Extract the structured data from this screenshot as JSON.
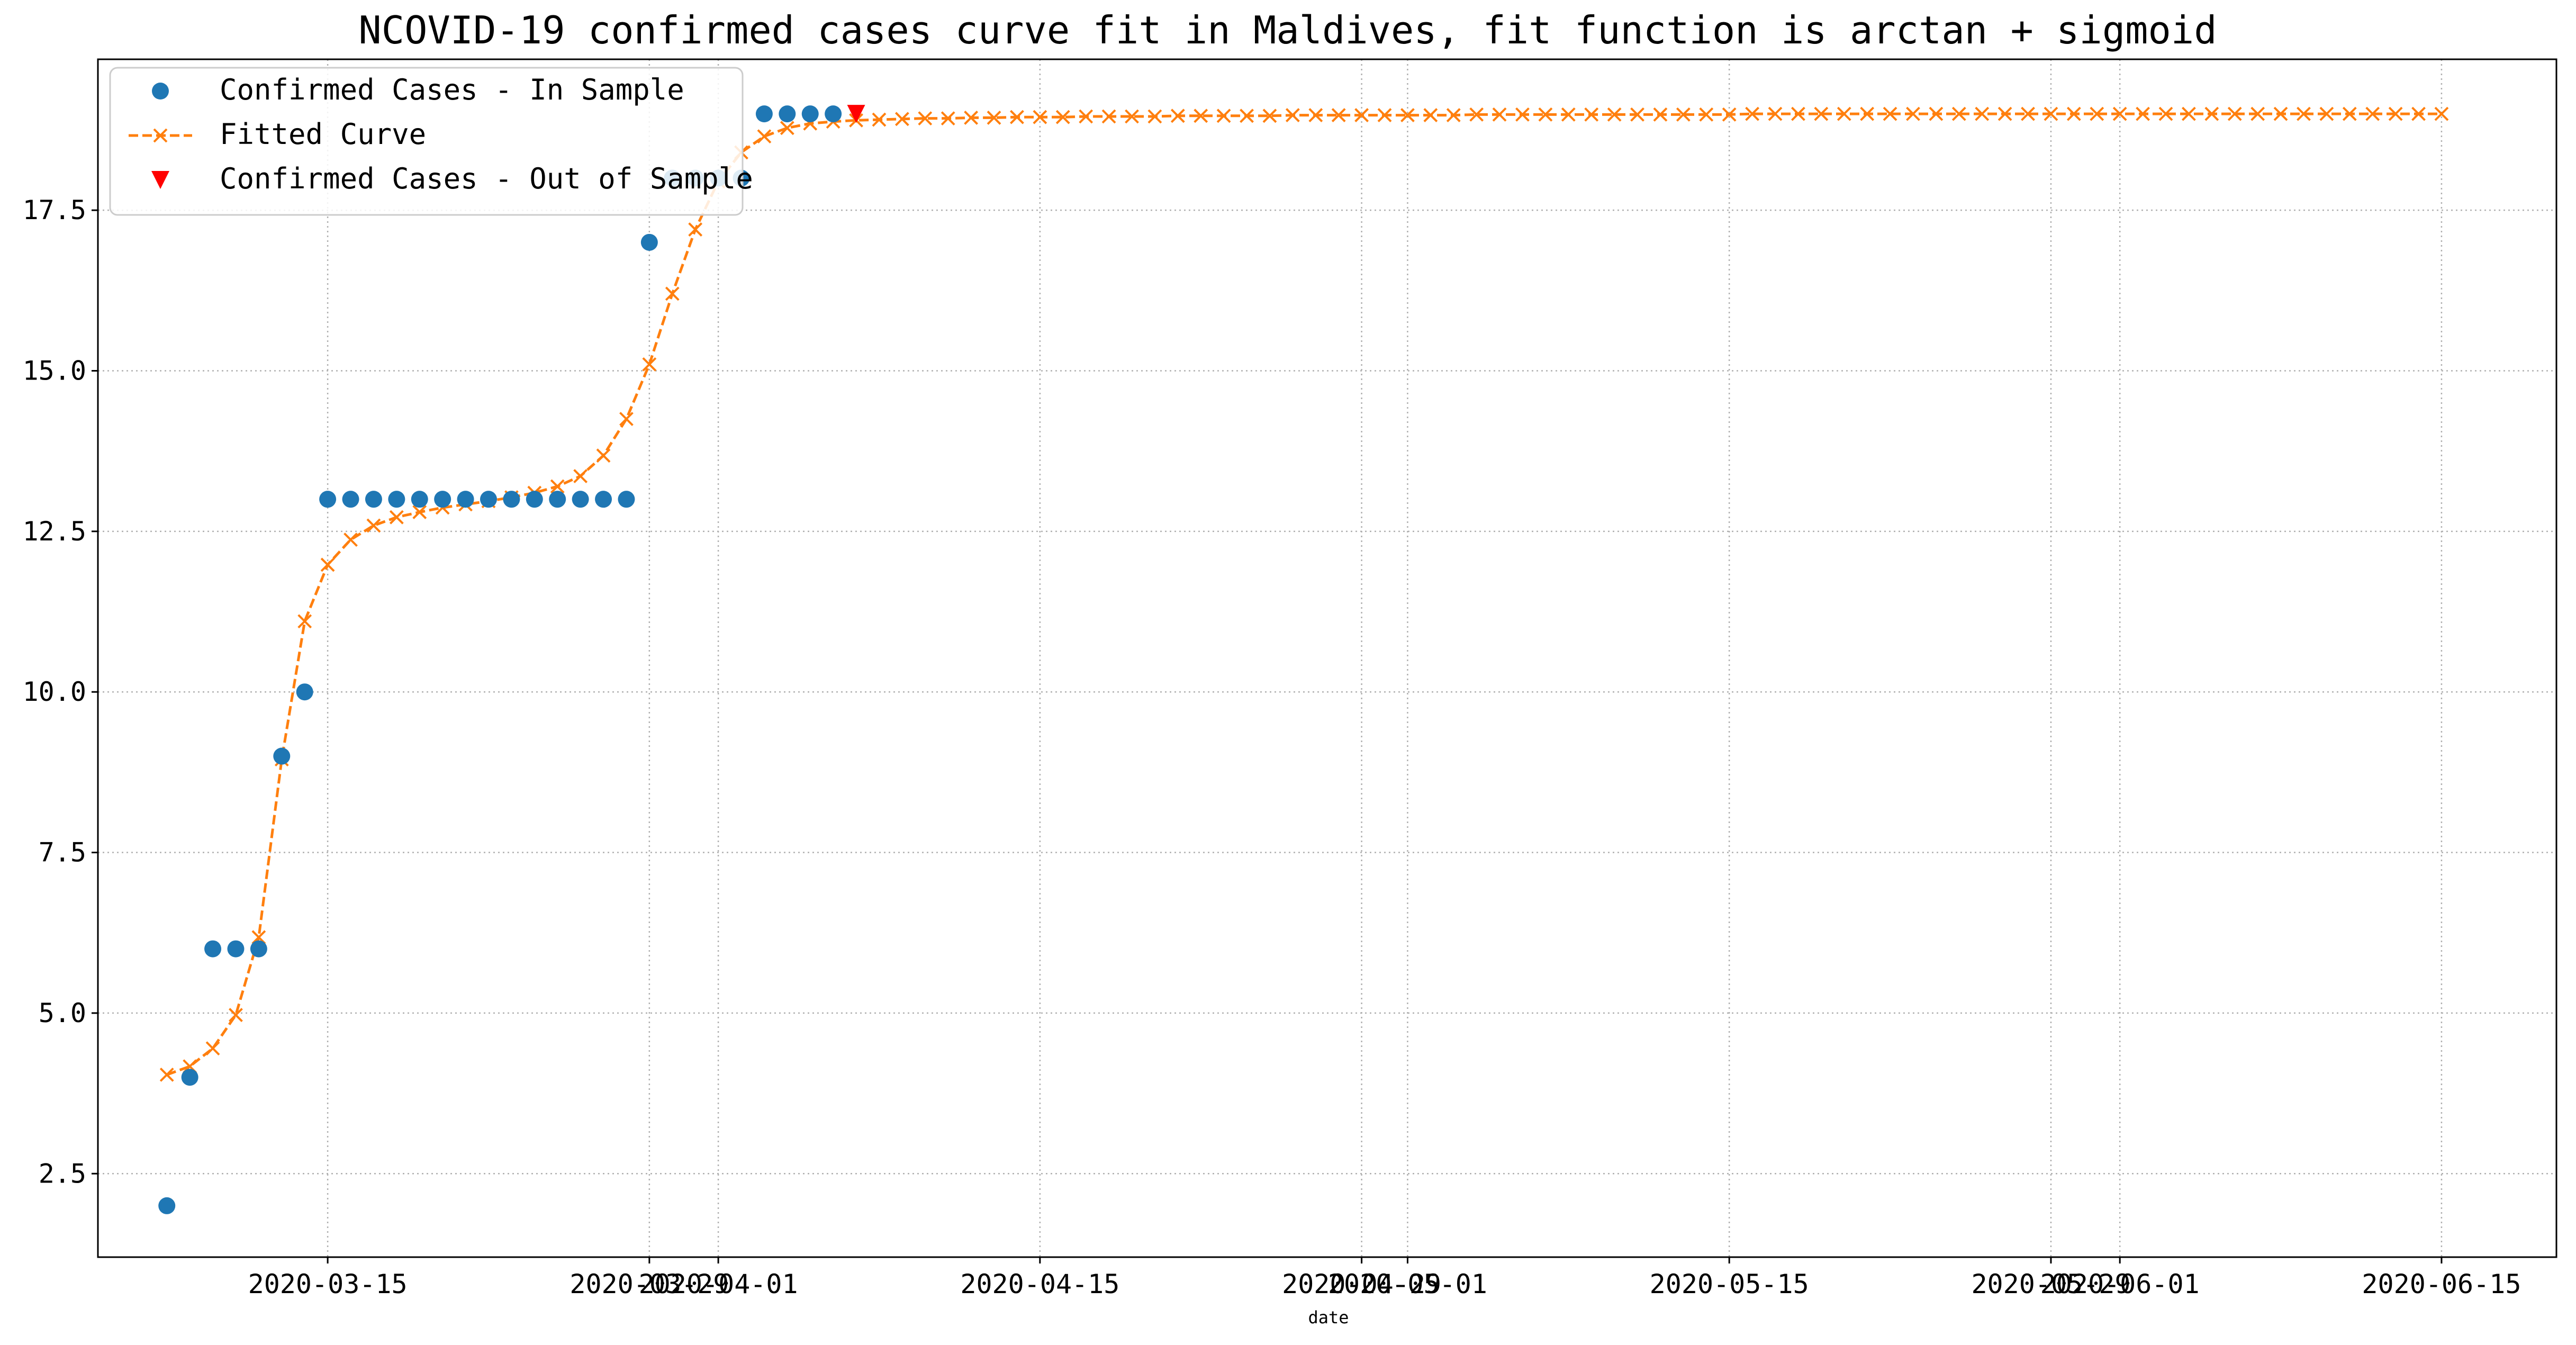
{
  "chart_data": {
    "type": "line",
    "title": "NCOVID-19 confirmed cases curve fit in Maldives, fit function is arctan + sigmoid",
    "xlabel": "date",
    "ylabel": "",
    "x_start_date": "2020-03-08",
    "xlim": [
      "2020-03-05",
      "2020-06-20"
    ],
    "ylim": [
      1.2,
      19.85
    ],
    "grid": true,
    "legend_position": "top-left",
    "x_ticks": [
      {
        "date": "2020-03-15",
        "label": "2020-03-15"
      },
      {
        "date": "2020-03-29",
        "label": "2020-03-29"
      },
      {
        "date": "2020-04-01",
        "label": "2020-04-01"
      },
      {
        "date": "2020-04-15",
        "label": "2020-04-15"
      },
      {
        "date": "2020-04-29",
        "label": "2020-04-29"
      },
      {
        "date": "2020-05-01",
        "label": "2020-05-01"
      },
      {
        "date": "2020-05-15",
        "label": "2020-05-15"
      },
      {
        "date": "2020-05-29",
        "label": "2020-05-29"
      },
      {
        "date": "2020-06-01",
        "label": "2020-06-01"
      },
      {
        "date": "2020-06-15",
        "label": "2020-06-15"
      }
    ],
    "y_ticks": [
      {
        "value": 2.5,
        "label": "2.5"
      },
      {
        "value": 5.0,
        "label": "5.0"
      },
      {
        "value": 7.5,
        "label": "7.5"
      },
      {
        "value": 10.0,
        "label": "10.0"
      },
      {
        "value": 12.5,
        "label": "12.5"
      },
      {
        "value": 15.0,
        "label": "15.0"
      },
      {
        "value": 17.5,
        "label": "17.5"
      }
    ],
    "series": [
      {
        "name": "Confirmed Cases - In Sample",
        "style": "scatter-dot",
        "color": "#1f77b4",
        "x": [
          "2020-03-08",
          "2020-03-09",
          "2020-03-10",
          "2020-03-11",
          "2020-03-12",
          "2020-03-13",
          "2020-03-14",
          "2020-03-15",
          "2020-03-16",
          "2020-03-17",
          "2020-03-18",
          "2020-03-19",
          "2020-03-20",
          "2020-03-21",
          "2020-03-22",
          "2020-03-23",
          "2020-03-24",
          "2020-03-25",
          "2020-03-26",
          "2020-03-27",
          "2020-03-28",
          "2020-03-29",
          "2020-03-30",
          "2020-03-31",
          "2020-04-01",
          "2020-04-02",
          "2020-04-03",
          "2020-04-04",
          "2020-04-05",
          "2020-04-06"
        ],
        "values": [
          2,
          4,
          6,
          6,
          6,
          9,
          10,
          13,
          13,
          13,
          13,
          13,
          13,
          13,
          13,
          13,
          13,
          13,
          13,
          13,
          13,
          17,
          18,
          18,
          18,
          18,
          19,
          19,
          19,
          19
        ]
      },
      {
        "name": "Fitted Curve",
        "style": "dashed-line-x",
        "color": "#ff7f0e",
        "x_start": "2020-03-08",
        "x_end": "2020-06-15",
        "values": [
          4.04,
          4.17,
          4.45,
          4.97,
          6.18,
          8.95,
          11.1,
          11.98,
          12.37,
          12.59,
          12.72,
          12.8,
          12.87,
          12.92,
          12.97,
          13.03,
          13.1,
          13.2,
          13.36,
          13.68,
          14.25,
          15.1,
          16.2,
          17.2,
          17.95,
          18.4,
          18.65,
          18.78,
          18.85,
          18.88,
          18.9,
          18.91,
          18.92,
          18.93,
          18.93,
          18.94,
          18.94,
          18.95,
          18.95,
          18.95,
          18.96,
          18.96,
          18.96,
          18.96,
          18.97,
          18.97,
          18.97,
          18.97,
          18.97,
          18.98,
          18.98,
          18.98,
          18.98,
          18.98,
          18.98,
          18.98,
          18.98,
          18.99,
          18.99,
          18.99,
          18.99,
          18.99,
          18.99,
          18.99,
          18.99,
          18.99,
          18.99,
          18.99,
          18.99,
          19.0,
          19.0,
          19.0,
          19.0,
          19.0,
          19.0,
          19.0,
          19.0,
          19.0,
          19.0,
          19.0,
          19.0,
          19.0,
          19.0,
          19.0,
          19.0,
          19.0,
          19.0,
          19.0,
          19.0,
          19.0,
          19.0,
          19.0,
          19.0,
          19.0,
          19.0,
          19.0,
          19.0,
          19.0,
          19.0,
          19.0
        ]
      },
      {
        "name": "Confirmed Cases - Out of Sample",
        "style": "triangle-down",
        "color": "#ff0000",
        "x": [
          "2020-04-07"
        ],
        "values": [
          19
        ]
      }
    ]
  }
}
